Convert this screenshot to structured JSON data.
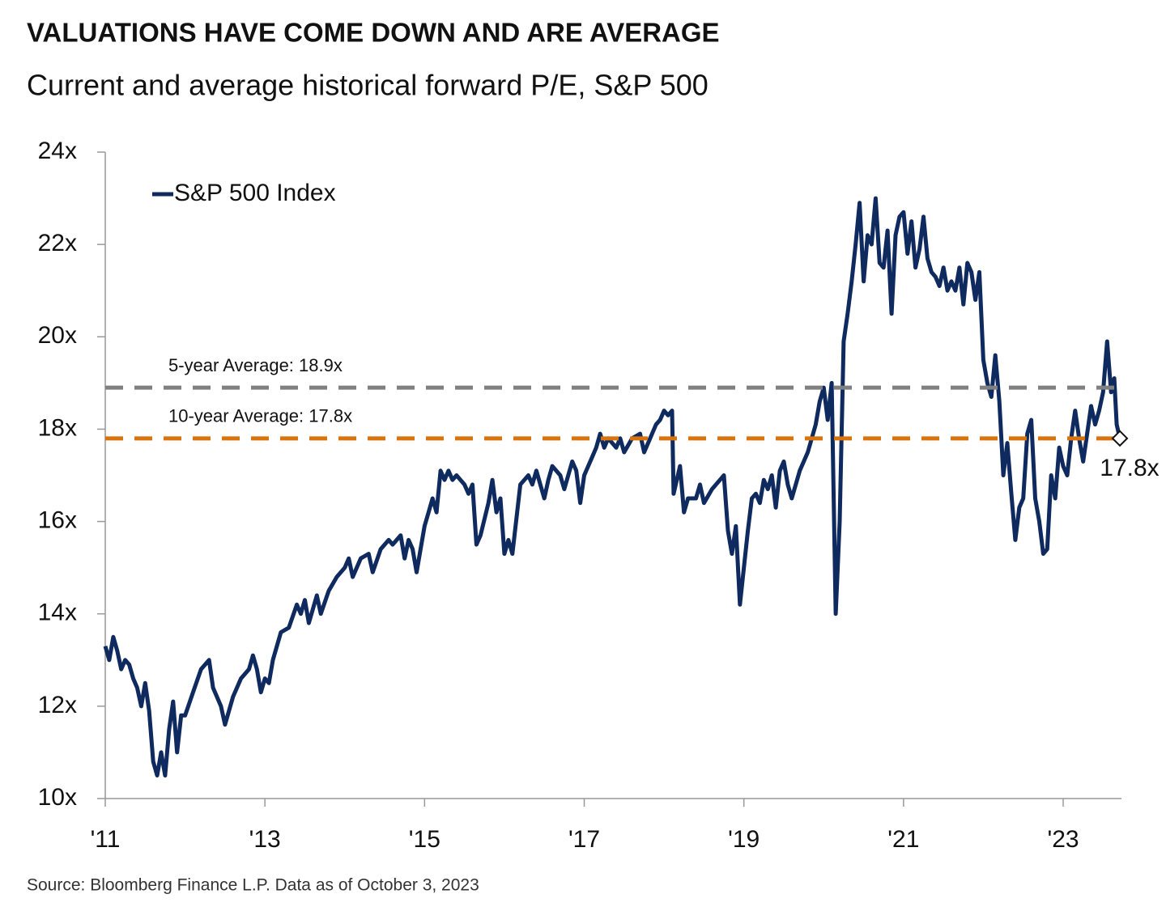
{
  "chart_data": {
    "type": "line",
    "title": "VALUATIONS HAVE COME DOWN AND ARE AVERAGE",
    "subtitle": "Current and average historical forward P/E, S&P 500",
    "source": "Source: Bloomberg Finance L.P.  Data as of October 3, 2023",
    "x": [
      2011.0,
      2011.05,
      2011.1,
      2011.15,
      2011.2,
      2011.25,
      2011.3,
      2011.35,
      2011.4,
      2011.45,
      2011.5,
      2011.55,
      2011.6,
      2011.65,
      2011.7,
      2011.75,
      2011.8,
      2011.85,
      2011.9,
      2011.95,
      2012.0,
      2012.1,
      2012.2,
      2012.3,
      2012.35,
      2012.45,
      2012.5,
      2012.6,
      2012.7,
      2012.8,
      2012.85,
      2012.9,
      2012.95,
      2013.0,
      2013.05,
      2013.1,
      2013.2,
      2013.3,
      2013.4,
      2013.45,
      2013.5,
      2013.55,
      2013.65,
      2013.7,
      2013.8,
      2013.9,
      2014.0,
      2014.05,
      2014.1,
      2014.2,
      2014.3,
      2014.35,
      2014.45,
      2014.55,
      2014.6,
      2014.7,
      2014.75,
      2014.8,
      2014.85,
      2014.9,
      2015.0,
      2015.05,
      2015.1,
      2015.15,
      2015.2,
      2015.25,
      2015.3,
      2015.35,
      2015.4,
      2015.5,
      2015.55,
      2015.6,
      2015.65,
      2015.7,
      2015.8,
      2015.85,
      2015.9,
      2015.95,
      2016.0,
      2016.05,
      2016.1,
      2016.2,
      2016.3,
      2016.35,
      2016.4,
      2016.45,
      2016.5,
      2016.55,
      2016.6,
      2016.7,
      2016.75,
      2016.85,
      2016.9,
      2016.95,
      2017.0,
      2017.1,
      2017.15,
      2017.2,
      2017.25,
      2017.3,
      2017.4,
      2017.45,
      2017.5,
      2017.6,
      2017.7,
      2017.75,
      2017.8,
      2017.9,
      2017.95,
      2018.0,
      2018.05,
      2018.1,
      2018.12,
      2018.2,
      2018.25,
      2018.3,
      2018.4,
      2018.45,
      2018.5,
      2018.6,
      2018.7,
      2018.75,
      2018.8,
      2018.85,
      2018.9,
      2018.95,
      2019.0,
      2019.05,
      2019.1,
      2019.15,
      2019.2,
      2019.25,
      2019.3,
      2019.35,
      2019.4,
      2019.45,
      2019.5,
      2019.55,
      2019.6,
      2019.7,
      2019.8,
      2019.9,
      2019.95,
      2020.0,
      2020.05,
      2020.1,
      2020.15,
      2020.2,
      2020.25,
      2020.3,
      2020.35,
      2020.4,
      2020.45,
      2020.5,
      2020.55,
      2020.6,
      2020.65,
      2020.7,
      2020.75,
      2020.8,
      2020.85,
      2020.9,
      2020.95,
      2021.0,
      2021.05,
      2021.1,
      2021.15,
      2021.2,
      2021.25,
      2021.3,
      2021.35,
      2021.4,
      2021.45,
      2021.5,
      2021.55,
      2021.6,
      2021.65,
      2021.7,
      2021.75,
      2021.8,
      2021.85,
      2021.9,
      2021.95,
      2022.0,
      2022.05,
      2022.1,
      2022.15,
      2022.2,
      2022.25,
      2022.3,
      2022.35,
      2022.4,
      2022.45,
      2022.5,
      2022.55,
      2022.6,
      2022.65,
      2022.7,
      2022.75,
      2022.8,
      2022.85,
      2022.9,
      2022.95,
      2023.0,
      2023.05,
      2023.1,
      2023.15,
      2023.2,
      2023.25,
      2023.3,
      2023.35,
      2023.4,
      2023.45,
      2023.5,
      2023.55,
      2023.6,
      2023.64,
      2023.67,
      2023.71
    ],
    "series": [
      {
        "name": "S&P 500 Index",
        "color": "#0f2a5e",
        "values": [
          13.3,
          13.0,
          13.5,
          13.2,
          12.8,
          13.0,
          12.9,
          12.6,
          12.4,
          12.0,
          12.5,
          11.9,
          10.8,
          10.5,
          11.0,
          10.5,
          11.5,
          12.1,
          11.0,
          11.8,
          11.8,
          12.3,
          12.8,
          13.0,
          12.4,
          12.0,
          11.6,
          12.2,
          12.6,
          12.8,
          13.1,
          12.8,
          12.3,
          12.6,
          12.5,
          13.0,
          13.6,
          13.7,
          14.2,
          14.0,
          14.3,
          13.8,
          14.4,
          14.0,
          14.5,
          14.8,
          15.0,
          15.2,
          14.8,
          15.2,
          15.3,
          14.9,
          15.4,
          15.6,
          15.5,
          15.7,
          15.2,
          15.6,
          15.4,
          14.9,
          15.9,
          16.2,
          16.5,
          16.2,
          17.1,
          16.9,
          17.1,
          16.9,
          17.0,
          16.8,
          16.6,
          16.8,
          15.5,
          15.7,
          16.4,
          16.9,
          16.2,
          16.5,
          15.3,
          15.6,
          15.3,
          16.8,
          17.0,
          16.8,
          17.1,
          16.8,
          16.5,
          16.9,
          17.2,
          17.0,
          16.7,
          17.3,
          17.1,
          16.4,
          17.0,
          17.4,
          17.6,
          17.9,
          17.6,
          17.8,
          17.6,
          17.8,
          17.5,
          17.8,
          17.9,
          17.5,
          17.7,
          18.1,
          18.2,
          18.4,
          18.3,
          18.4,
          16.6,
          17.2,
          16.2,
          16.5,
          16.5,
          16.8,
          16.4,
          16.7,
          16.9,
          17.0,
          15.8,
          15.3,
          15.9,
          14.2,
          15.0,
          15.8,
          16.5,
          16.6,
          16.4,
          16.9,
          16.7,
          17.0,
          16.3,
          17.1,
          17.3,
          16.8,
          16.5,
          17.1,
          17.5,
          18.1,
          18.6,
          18.9,
          18.2,
          19.0,
          14.0,
          16.0,
          19.9,
          20.5,
          21.2,
          22.0,
          22.9,
          21.2,
          22.2,
          22.0,
          23.0,
          21.6,
          21.5,
          22.3,
          20.5,
          22.2,
          22.6,
          22.7,
          21.8,
          22.5,
          21.5,
          21.9,
          22.6,
          21.7,
          21.4,
          21.3,
          21.1,
          21.5,
          21.0,
          21.2,
          21.0,
          21.5,
          20.7,
          21.6,
          21.4,
          20.8,
          21.4,
          19.5,
          19.0,
          18.7,
          19.6,
          18.6,
          17.0,
          17.7,
          16.6,
          15.6,
          16.3,
          16.5,
          17.9,
          18.2,
          16.5,
          16.0,
          15.3,
          15.4,
          17.0,
          16.5,
          17.6,
          17.2,
          17.0,
          17.8,
          18.4,
          17.8,
          17.3,
          17.9,
          18.5,
          18.1,
          18.4,
          18.8,
          19.9,
          18.8,
          19.1,
          18.1,
          17.8
        ]
      }
    ],
    "last_label": {
      "value": 17.8,
      "label": "17.8x"
    },
    "references": [
      {
        "label": "5-year Average: 18.9x",
        "value": 18.9,
        "color": "#808080"
      },
      {
        "label": "10-year Average: 17.8x",
        "value": 17.8,
        "color": "#d9730d"
      }
    ],
    "xlim": [
      2011,
      2023.73
    ],
    "xticks": [
      {
        "value": 2011,
        "label": "'11"
      },
      {
        "value": 2013,
        "label": "'13"
      },
      {
        "value": 2015,
        "label": "'15"
      },
      {
        "value": 2017,
        "label": "'17"
      },
      {
        "value": 2019,
        "label": "'19"
      },
      {
        "value": 2021,
        "label": "'21"
      },
      {
        "value": 2023,
        "label": "'23"
      }
    ],
    "ylim": [
      10,
      24
    ],
    "yticks": [
      {
        "value": 10,
        "label": "10x"
      },
      {
        "value": 12,
        "label": "12x"
      },
      {
        "value": 14,
        "label": "14x"
      },
      {
        "value": 16,
        "label": "16x"
      },
      {
        "value": 18,
        "label": "18x"
      },
      {
        "value": 20,
        "label": "20x"
      },
      {
        "value": 22,
        "label": "22x"
      },
      {
        "value": 24,
        "label": "24x"
      }
    ],
    "legend": "upper left"
  }
}
